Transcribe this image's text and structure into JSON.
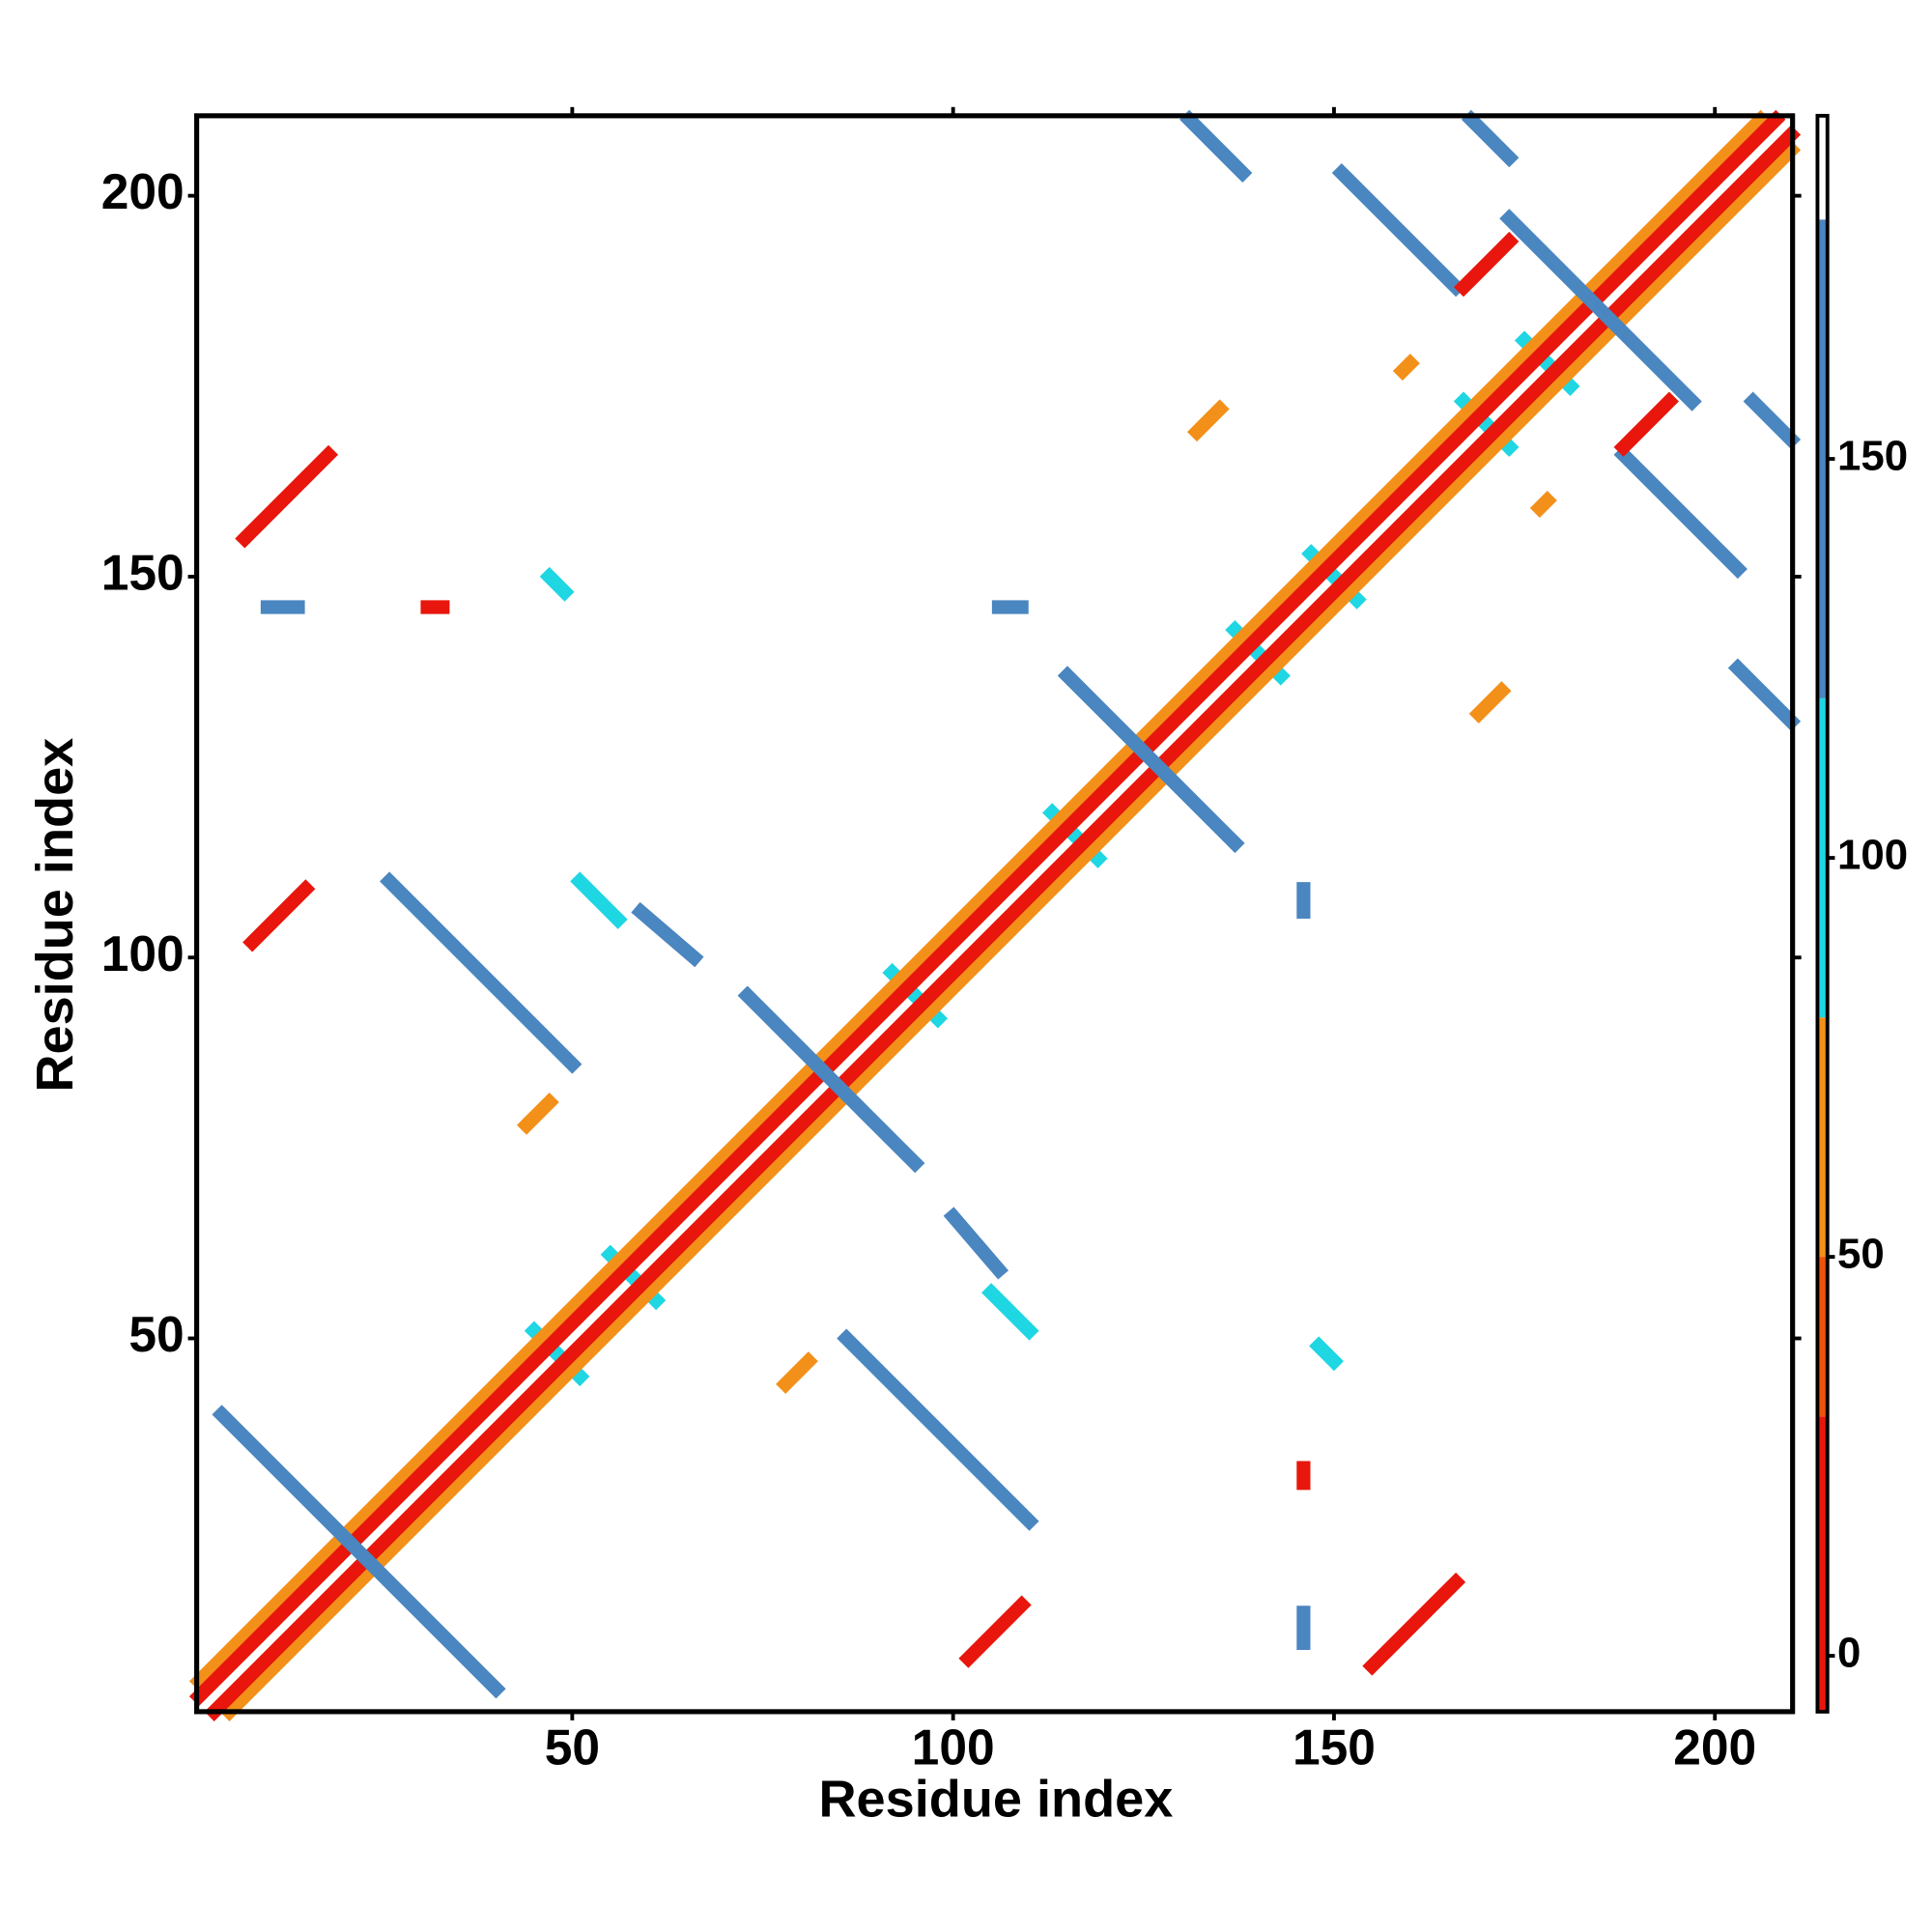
{
  "chart_data": {
    "type": "heatmap",
    "x_label": "Residue index",
    "y_label": "Residue index",
    "xlim": [
      0.7,
      210.2
    ],
    "ylim": [
      1,
      210.5
    ],
    "xticks": [
      50,
      100,
      150,
      200
    ],
    "yticks": [
      50,
      100,
      150,
      200
    ],
    "symmetric": true,
    "colorbar": {
      "lim": [
        -7,
        193
      ],
      "ticks": [
        0,
        50,
        100,
        150
      ],
      "bands": [
        {
          "from": -7,
          "to": 30,
          "color": "#e8160c"
        },
        {
          "from": 30,
          "to": 50,
          "color": "#f0520c"
        },
        {
          "from": 50,
          "to": 80,
          "color": "#f39019"
        },
        {
          "from": 80,
          "to": 120,
          "color": "#1fd6e3"
        },
        {
          "from": 120,
          "to": 180,
          "color": "#4a86c0"
        },
        {
          "from": 180,
          "to": 193,
          "color": "#ffffff"
        }
      ]
    },
    "features": [
      {
        "x": [
          45,
          51
        ],
        "y": [
          51,
          45
        ],
        "value": 100
      },
      {
        "x": [
          55,
          61
        ],
        "y": [
          61,
          55
        ],
        "value": 100
      },
      {
        "x": [
          92,
          98
        ],
        "y": [
          98,
          92
        ],
        "value": 100
      },
      {
        "x": [
          113,
          119
        ],
        "y": [
          119,
          113
        ],
        "value": 100
      },
      {
        "x": [
          137,
          143
        ],
        "y": [
          143,
          137
        ],
        "value": 100
      },
      {
        "x": [
          147,
          153
        ],
        "y": [
          153,
          147
        ],
        "value": 100
      },
      {
        "x": [
          167,
          173
        ],
        "y": [
          173,
          167
        ],
        "value": 100
      },
      {
        "x": [
          175,
          181
        ],
        "y": [
          181,
          175
        ],
        "value": 100
      },
      {
        "x": [
          1,
          206
        ],
        "y": [
          5,
          210
        ],
        "value": 60
      },
      {
        "x": [
          1,
          208
        ],
        "y": [
          3,
          210
        ],
        "value": 10
      },
      {
        "x": [
          4,
          40
        ],
        "y": [
          40,
          4
        ],
        "value": 150
      },
      {
        "x": [
          73,
          95
        ],
        "y": [
          95,
          73
        ],
        "value": 150
      },
      {
        "x": [
          115,
          137
        ],
        "y": [
          137,
          115
        ],
        "value": 150
      },
      {
        "x": [
          173,
          197
        ],
        "y": [
          197,
          173
        ],
        "value": 150
      },
      {
        "x": [
          26,
          50
        ],
        "y": [
          110,
          86
        ],
        "value": 150
      },
      {
        "x": [
          59,
          66
        ],
        "y": [
          106,
          100
        ],
        "value": 150
      },
      {
        "x": [
          51,
          56
        ],
        "y": [
          110,
          105
        ],
        "value": 100
      },
      {
        "x": [
          131,
          138
        ],
        "y": [
          210,
          203
        ],
        "value": 150
      },
      {
        "x": [
          168,
          173
        ],
        "y": [
          210,
          205
        ],
        "value": 150
      },
      {
        "x": [
          151,
          166
        ],
        "y": [
          203,
          188
        ],
        "value": 150
      },
      {
        "x": [
          7,
          18
        ],
        "y": [
          155,
          166
        ],
        "value": 10
      },
      {
        "x": [
          167,
          173
        ],
        "y": [
          188,
          194
        ],
        "value": 10
      },
      {
        "x": [
          8,
          15
        ],
        "y": [
          102,
          109
        ],
        "value": 10
      },
      {
        "x": [
          44,
          47
        ],
        "y": [
          78,
          81
        ],
        "value": 50
      },
      {
        "x": [
          31,
          33
        ],
        "y": [
          146,
          146
        ],
        "value": 10
      },
      {
        "x": [
          10,
          14
        ],
        "y": [
          146,
          146
        ],
        "value": 150
      },
      {
        "x": [
          47,
          49
        ],
        "y": [
          150,
          148
        ],
        "value": 100
      },
      {
        "x": [
          106,
          109
        ],
        "y": [
          146,
          146
        ],
        "value": 150
      },
      {
        "x": [
          132,
          135
        ],
        "y": [
          169,
          172
        ],
        "value": 50
      },
      {
        "x": [
          159,
          160
        ],
        "y": [
          177,
          178
        ],
        "value": 50
      }
    ]
  }
}
